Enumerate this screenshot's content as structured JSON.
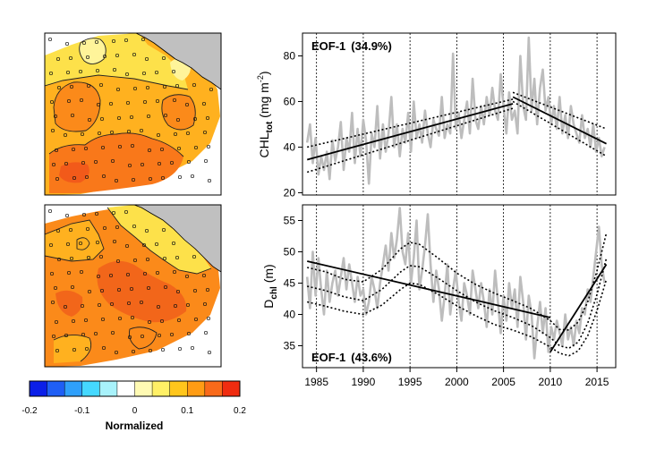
{
  "colorbar": {
    "ticks": [
      "-0.2",
      "-0.1",
      "0",
      "0.1",
      "0.2"
    ],
    "label": "Normalized",
    "colors": [
      "#0b1fe8",
      "#1f5ff5",
      "#2fa0fb",
      "#45d8ff",
      "#a8f2fb",
      "#ffffff",
      "#fffab3",
      "#fff066",
      "#ffc61c",
      "#ff9c14",
      "#f96a1a",
      "#f02c10"
    ]
  },
  "maps": {
    "land_color": "#c0c0c0",
    "station_marker": "open-circle"
  },
  "chart_data": [
    {
      "type": "line",
      "panel": "top",
      "annotation": "EOF-1",
      "annotation_pct": "(34.9%)",
      "ylabel_main": "CHL",
      "ylabel_sub": "tot",
      "ylabel_unit": " (mg m",
      "ylabel_sup": "-2",
      "ylabel_close": ")",
      "xlim": [
        1983.5,
        2017
      ],
      "ylim": [
        19,
        90
      ],
      "yticks": [
        20,
        40,
        60,
        80
      ],
      "xticks": [
        1985,
        1990,
        1995,
        2000,
        2005,
        2010,
        2015
      ],
      "vlines": [
        1985,
        1990,
        1995,
        2000,
        2005,
        2010,
        2015
      ],
      "observed": {
        "x": [
          1984.0,
          1984.3,
          1984.6,
          1984.9,
          1985.2,
          1985.5,
          1985.8,
          1986.1,
          1986.4,
          1986.7,
          1987.0,
          1987.3,
          1987.6,
          1987.9,
          1988.2,
          1988.5,
          1988.8,
          1989.1,
          1989.4,
          1989.7,
          1990.0,
          1990.3,
          1990.6,
          1990.9,
          1991.2,
          1991.5,
          1991.8,
          1992.1,
          1992.4,
          1992.7,
          1993.0,
          1993.3,
          1993.6,
          1993.9,
          1994.2,
          1994.5,
          1994.8,
          1995.1,
          1995.4,
          1995.7,
          1996.0,
          1996.3,
          1996.6,
          1996.9,
          1997.2,
          1997.5,
          1997.8,
          1998.1,
          1998.4,
          1998.7,
          1999.0,
          1999.3,
          1999.6,
          1999.9,
          2000.2,
          2000.5,
          2000.8,
          2001.1,
          2001.4,
          2001.7,
          2002.0,
          2002.3,
          2002.6,
          2002.9,
          2003.2,
          2003.5,
          2003.8,
          2004.1,
          2004.4,
          2004.7,
          2005.0,
          2005.3,
          2005.6,
          2005.9,
          2006.2,
          2006.5,
          2006.8,
          2007.1,
          2007.4,
          2007.7,
          2008.0,
          2008.3,
          2008.6,
          2008.9,
          2009.2,
          2009.5,
          2009.8,
          2010.1,
          2010.4,
          2010.7,
          2011.0,
          2011.3,
          2011.6,
          2011.9,
          2012.2,
          2012.5,
          2012.8,
          2013.1,
          2013.4,
          2013.7,
          2014.0,
          2014.3,
          2014.6,
          2014.9,
          2015.2,
          2015.5,
          2015.8
        ],
        "y": [
          42,
          50,
          33,
          44,
          28,
          36,
          30,
          38,
          26,
          43,
          34,
          40,
          51,
          30,
          44,
          38,
          55,
          33,
          48,
          36,
          52,
          43,
          24,
          46,
          40,
          58,
          35,
          50,
          38,
          46,
          62,
          40,
          50,
          36,
          48,
          42,
          55,
          38,
          60,
          44,
          50,
          42,
          56,
          46,
          40,
          52,
          48,
          45,
          62,
          44,
          50,
          46,
          81,
          48,
          55,
          44,
          52,
          60,
          46,
          70,
          52,
          48,
          58,
          50,
          62,
          54,
          66,
          56,
          52,
          72,
          58,
          46,
          64,
          52,
          56,
          46,
          80,
          58,
          52,
          88,
          56,
          70,
          50,
          66,
          74,
          56,
          62,
          50,
          58,
          48,
          62,
          46,
          54,
          44,
          58,
          50,
          46,
          42,
          54,
          44,
          48,
          40,
          50,
          38,
          44,
          36,
          40
        ]
      },
      "trend_segments": [
        {
          "x": [
            1984,
            2006
          ],
          "y": [
            34.5,
            59
          ]
        },
        {
          "x": [
            2006,
            2016
          ],
          "y": [
            62,
            41.5
          ]
        }
      ],
      "confidence_bands": [
        {
          "x": [
            1984,
            2006,
            2006,
            2016
          ],
          "y": [
            40,
            61,
            64,
            48
          ]
        },
        {
          "x": [
            1984,
            2006,
            2006,
            2016
          ],
          "y": [
            29,
            57,
            60,
            36
          ]
        }
      ]
    },
    {
      "type": "line",
      "panel": "bottom",
      "annotation": "EOF-1",
      "annotation_pct": "(43.6%)",
      "ylabel_main": "D",
      "ylabel_sub": "chl",
      "ylabel_unit": " (m)",
      "ylabel_sup": "",
      "ylabel_close": "",
      "xlim": [
        1983.5,
        2017
      ],
      "ylim": [
        31.5,
        57.5
      ],
      "yticks": [
        35,
        40,
        45,
        50,
        55
      ],
      "xticks": [
        1985,
        1990,
        1995,
        2000,
        2005,
        2010,
        2015
      ],
      "vlines": [
        1985,
        1990,
        1995,
        2000,
        2005,
        2010,
        2015
      ],
      "observed": {
        "x": [
          1984.0,
          1984.3,
          1984.6,
          1984.9,
          1985.2,
          1985.5,
          1985.8,
          1986.1,
          1986.4,
          1986.7,
          1987.0,
          1987.3,
          1987.6,
          1987.9,
          1988.2,
          1988.5,
          1988.8,
          1989.1,
          1989.4,
          1989.7,
          1990.0,
          1990.3,
          1990.6,
          1990.9,
          1991.2,
          1991.5,
          1991.8,
          1992.1,
          1992.4,
          1992.7,
          1993.0,
          1993.3,
          1993.6,
          1993.9,
          1994.2,
          1994.5,
          1994.8,
          1995.1,
          1995.4,
          1995.7,
          1996.0,
          1996.3,
          1996.6,
          1996.9,
          1997.2,
          1997.5,
          1997.8,
          1998.1,
          1998.4,
          1998.7,
          1999.0,
          1999.3,
          1999.6,
          1999.9,
          2000.2,
          2000.5,
          2000.8,
          2001.1,
          2001.4,
          2001.7,
          2002.0,
          2002.3,
          2002.6,
          2002.9,
          2003.2,
          2003.5,
          2003.8,
          2004.1,
          2004.4,
          2004.7,
          2005.0,
          2005.3,
          2005.6,
          2005.9,
          2006.2,
          2006.5,
          2006.8,
          2007.1,
          2007.4,
          2007.7,
          2008.0,
          2008.3,
          2008.6,
          2008.9,
          2009.2,
          2009.5,
          2009.8,
          2010.1,
          2010.4,
          2010.7,
          2011.0,
          2011.3,
          2011.6,
          2011.9,
          2012.2,
          2012.5,
          2012.8,
          2013.1,
          2013.4,
          2013.7,
          2014.0,
          2014.3,
          2014.6,
          2014.9,
          2015.2,
          2015.5,
          2015.8
        ],
        "y": [
          46,
          41,
          50,
          43,
          49,
          44,
          40,
          47,
          42,
          45,
          47,
          43,
          46,
          49,
          44,
          48,
          45,
          42,
          46,
          43,
          44,
          40,
          42,
          46,
          44,
          41,
          45,
          48,
          51,
          47,
          53,
          49,
          52,
          57,
          50,
          48,
          53,
          45,
          49,
          55,
          44,
          47,
          51,
          56,
          48,
          42,
          47,
          44,
          39,
          43,
          48,
          40,
          44,
          47,
          42,
          39,
          45,
          43,
          40,
          47,
          44,
          41,
          45,
          42,
          38,
          44,
          40,
          47,
          42,
          37,
          43,
          39,
          45,
          41,
          44,
          38,
          46,
          42,
          36,
          43,
          40,
          33,
          38,
          42,
          37,
          41,
          34,
          38,
          36,
          39,
          37,
          35,
          40,
          36,
          38,
          35,
          39,
          37,
          41,
          40,
          44,
          42,
          46,
          50,
          54,
          48,
          45
        ]
      },
      "trend_segments": [
        {
          "x": [
            1984,
            2010
          ],
          "y": [
            48.5,
            39.5
          ]
        },
        {
          "x": [
            2010,
            2016
          ],
          "y": [
            34,
            48
          ]
        }
      ],
      "confidence_bands": [
        {
          "x": [
            1984,
            1986,
            1988,
            1990,
            1992,
            1994,
            1995,
            1996,
            1998,
            2000,
            2002,
            2004,
            2006,
            2008,
            2010,
            2011,
            2012,
            2013,
            2014,
            2015,
            2016
          ],
          "y": [
            47.5,
            46.8,
            45.6,
            45.2,
            47.2,
            50.5,
            51.5,
            51.2,
            49.0,
            46.6,
            44.8,
            43.4,
            42.2,
            40.9,
            39.0,
            37.6,
            37.5,
            38.8,
            42.0,
            47.0,
            53.0
          ]
        },
        {
          "x": [
            1984,
            1986,
            1988,
            1990,
            1992,
            1994,
            1995,
            1996,
            1998,
            2000,
            2002,
            2004,
            2006,
            2008,
            2010,
            2011,
            2012,
            2013,
            2014,
            2015,
            2016
          ],
          "y": [
            44.5,
            43.8,
            42.8,
            42.2,
            44.0,
            46.8,
            47.8,
            47.6,
            45.8,
            43.8,
            42.0,
            40.6,
            39.5,
            38.2,
            36.3,
            35.0,
            34.6,
            35.6,
            38.6,
            43.2,
            49.0
          ]
        },
        {
          "x": [
            1984,
            1986,
            1988,
            1990,
            1992,
            1994,
            1995,
            1996,
            1998,
            2000,
            2002,
            2004,
            2006,
            2008,
            2010,
            2011,
            2012,
            2013,
            2014,
            2015,
            2016
          ],
          "y": [
            42.0,
            41.3,
            40.5,
            40.0,
            41.5,
            44.0,
            45.0,
            44.8,
            43.2,
            41.4,
            39.8,
            38.4,
            37.5,
            36.4,
            34.8,
            33.8,
            33.4,
            34.2,
            36.6,
            40.6,
            45.6
          ]
        }
      ]
    }
  ]
}
